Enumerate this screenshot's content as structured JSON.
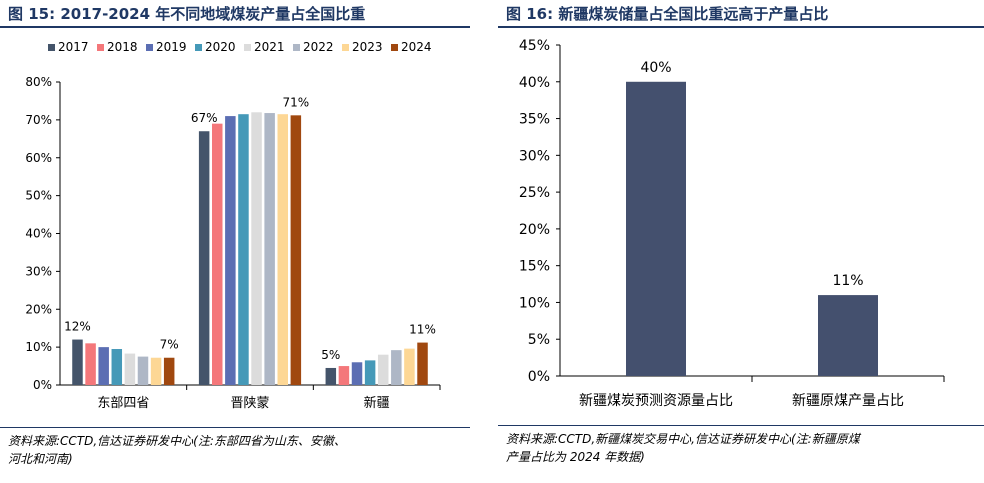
{
  "left": {
    "title": "图 15:  2017-2024 年不同地域煤炭产量占全国比重",
    "source_line1": "资料来源:CCTD,信达证券研发中心(注:东部四省为山东、安徽、",
    "source_line2": "河北和河南)"
  },
  "right": {
    "title": "图 16:  新疆煤炭储量占全国比重远高于产量占比",
    "source_line1": "资料来源:CCTD,新疆煤炭交易中心,信达证券研发中心(注:新疆原煤",
    "source_line2": "产量占比为 2024 年数据)"
  },
  "chart_data": [
    {
      "type": "bar",
      "categories": [
        "东部四省",
        "晋陕蒙",
        "新疆"
      ],
      "series": [
        {
          "name": "2017",
          "color": "#44546a",
          "values": [
            12,
            67,
            4.5
          ]
        },
        {
          "name": "2018",
          "color": "#f4777a",
          "values": [
            11,
            69,
            5
          ]
        },
        {
          "name": "2019",
          "color": "#5b6eb3",
          "values": [
            10,
            71,
            6
          ]
        },
        {
          "name": "2020",
          "color": "#4599b8",
          "values": [
            9.5,
            71.5,
            6.5
          ]
        },
        {
          "name": "2021",
          "color": "#dcdcdc",
          "values": [
            8.3,
            72,
            8
          ]
        },
        {
          "name": "2022",
          "color": "#aeb7c6",
          "values": [
            7.5,
            71.8,
            9.2
          ]
        },
        {
          "name": "2023",
          "color": "#fdd795",
          "values": [
            7.2,
            71.5,
            9.6
          ]
        },
        {
          "name": "2024",
          "color": "#a0480f",
          "values": [
            7.2,
            71.2,
            11.2
          ]
        }
      ],
      "ylim": [
        0,
        80
      ],
      "yticks": [
        "0%",
        "10%",
        "20%",
        "30%",
        "40%",
        "50%",
        "60%",
        "70%",
        "80%"
      ],
      "data_labels": [
        {
          "series": 0,
          "category": 0,
          "text": "12%"
        },
        {
          "series": 7,
          "category": 0,
          "text": "7%"
        },
        {
          "series": 0,
          "category": 1,
          "text": "67%"
        },
        {
          "series": 7,
          "category": 1,
          "text": "71%"
        },
        {
          "series": 0,
          "category": 2,
          "text": "5%"
        },
        {
          "series": 7,
          "category": 2,
          "text": "11%"
        }
      ],
      "legend": "top"
    },
    {
      "type": "bar",
      "categories": [
        "新疆煤炭预测资源量占比",
        "新疆原煤产量占比"
      ],
      "values": [
        40,
        11
      ],
      "value_labels": [
        "40%",
        "11%"
      ],
      "color": "#44506e",
      "ylim": [
        0,
        45
      ],
      "yticks": [
        "0%",
        "5%",
        "10%",
        "15%",
        "20%",
        "25%",
        "30%",
        "35%",
        "40%",
        "45%"
      ]
    }
  ]
}
